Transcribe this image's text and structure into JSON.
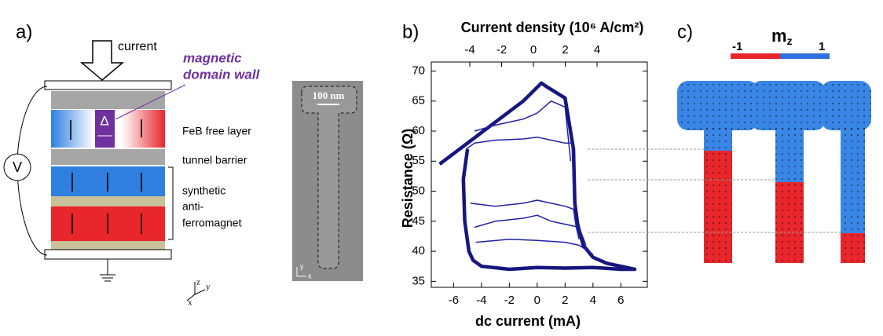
{
  "panel_a": {
    "label": "a)",
    "current": "current",
    "wall_label": [
      "magnetic",
      "domain wall"
    ],
    "delta": "Δ",
    "free_layer": "FeB free layer",
    "barrier": "tunnel barrier",
    "saf": [
      "synthetic",
      "anti-",
      "ferromagnet"
    ],
    "voltmeter": "V",
    "scale_bar": "100 nm",
    "axes": [
      "z",
      "y",
      "x"
    ],
    "sem_axes": [
      "y",
      "x"
    ]
  },
  "chart_data": {
    "type": "line",
    "label": "b)",
    "title": "Current density (10⁶ A/cm²)",
    "x_label": "dc current (mA)",
    "y_label": "Resistance (Ω)",
    "xlim": [
      -7.6,
      7.9
    ],
    "ylim": [
      34,
      71.5
    ],
    "x2lim": [
      -6.42,
      7.16
    ],
    "xticks": [
      -6,
      -4,
      -2,
      0,
      2,
      4,
      6
    ],
    "yticks": [
      35,
      40,
      45,
      50,
      55,
      60,
      65,
      70
    ],
    "x2ticks": [
      -4,
      -2,
      0,
      2,
      4
    ],
    "series": [
      {
        "color": "#16167e",
        "x": [
          -7,
          -5,
          -3,
          -1,
          0.3,
          0.6,
          2,
          2.6,
          2.7,
          2.9,
          3.3,
          4,
          5,
          6,
          7,
          6,
          4,
          2,
          0,
          -2,
          -4,
          -4.6,
          -4.9,
          -5.2,
          -5.3,
          -5
        ],
        "values": [
          54.5,
          58,
          61.5,
          65,
          68,
          67.5,
          65.5,
          57,
          48,
          44.5,
          41,
          39,
          38,
          37.5,
          37,
          37,
          37.3,
          37.2,
          37.3,
          37,
          37.5,
          38.5,
          40,
          45,
          52,
          57
        ]
      },
      {
        "color": "#2020a8",
        "x": [
          -5.1,
          -4.5,
          -3,
          -1,
          0,
          1,
          2,
          2.5,
          2.6
        ],
        "values": [
          57,
          58,
          58.5,
          58.7,
          59,
          58.5,
          58,
          58,
          50
        ]
      },
      {
        "color": "#2020a8",
        "x": [
          -4.8,
          -3,
          -1,
          0,
          1,
          2,
          2.6,
          2.8,
          3
        ],
        "values": [
          48,
          47.5,
          48,
          48.5,
          48,
          47.5,
          47,
          44,
          42
        ]
      },
      {
        "color": "#2020a8",
        "x": [
          -4.5,
          -3,
          -1,
          0,
          1,
          2,
          3,
          3.5
        ],
        "values": [
          44,
          45,
          45.5,
          46,
          45,
          44.5,
          44,
          41
        ]
      },
      {
        "color": "#2020a8",
        "x": [
          -4.4,
          -2,
          0,
          2,
          3,
          4
        ],
        "values": [
          41.5,
          42,
          41.8,
          41.5,
          41,
          39.5
        ]
      },
      {
        "color": "#2020a8",
        "x": [
          -4.5,
          -3,
          -1,
          0,
          1,
          2,
          2.4
        ],
        "values": [
          60,
          61,
          62,
          63,
          65,
          64,
          55
        ]
      }
    ]
  },
  "panel_c": {
    "label": "c)",
    "mz_main": "m",
    "mz_sub": "z",
    "scale_min": "-1",
    "scale_max": "1"
  }
}
